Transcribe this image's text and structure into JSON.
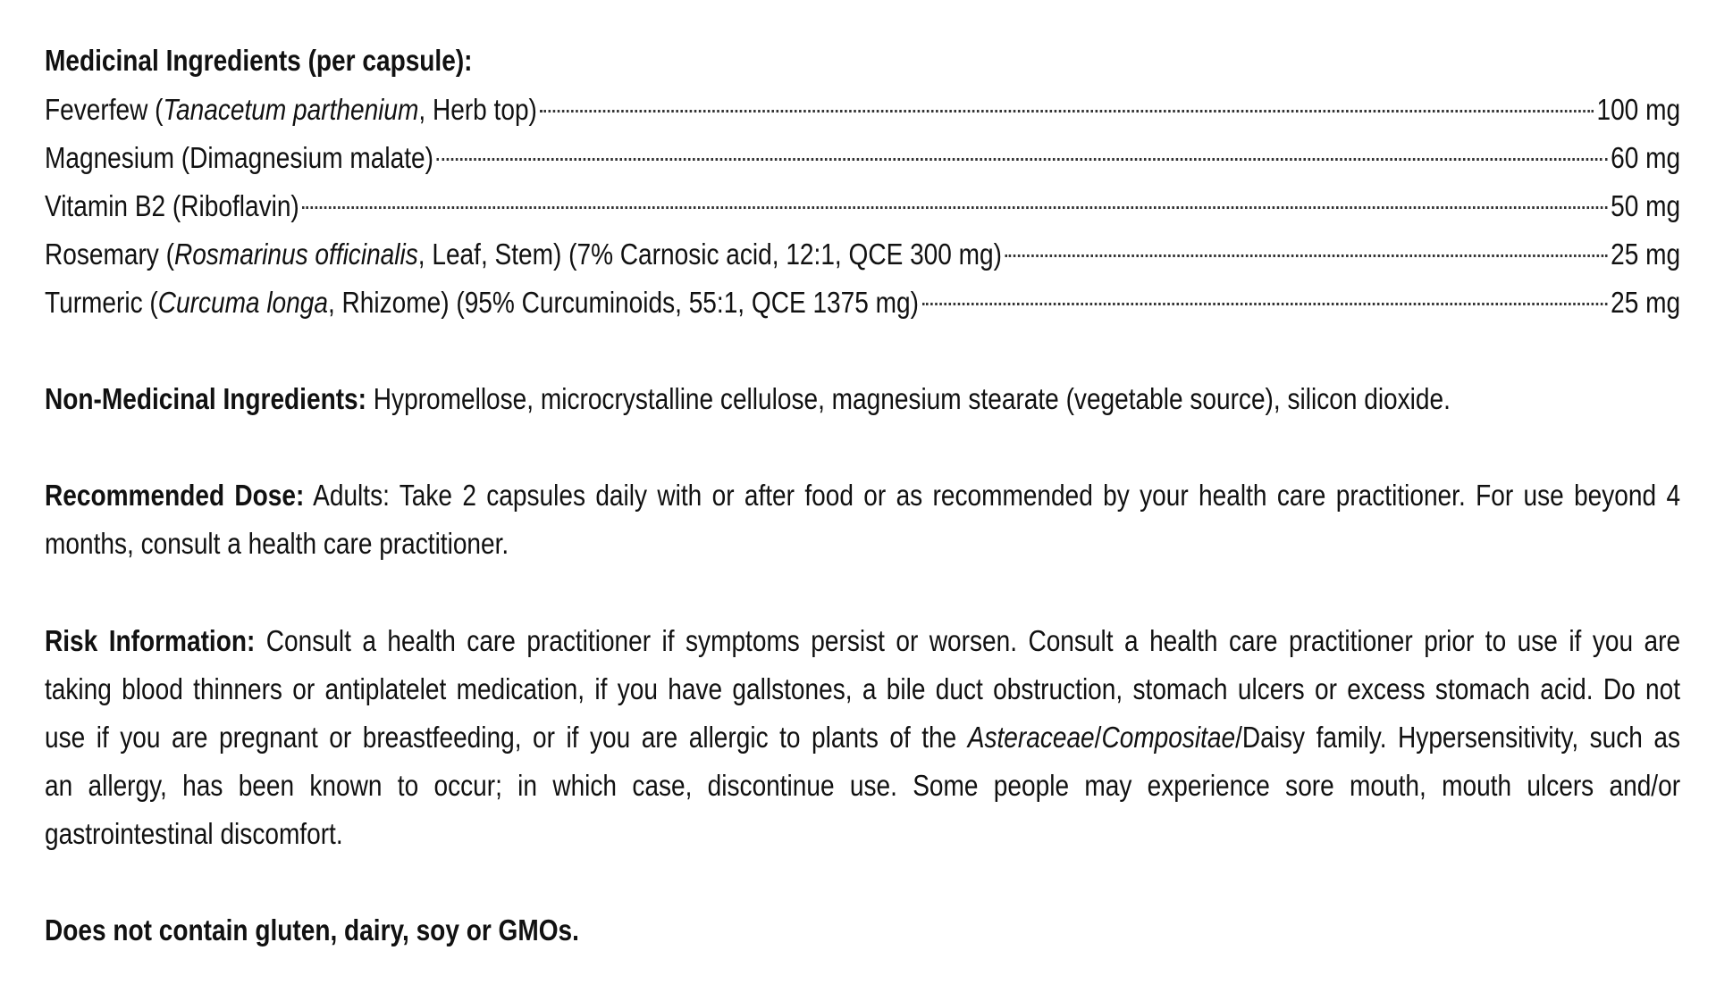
{
  "medicinal": {
    "heading": "Medicinal Ingredients (per capsule):",
    "items": [
      {
        "pre": "Feverfew (",
        "italic": "Tanacetum parthenium",
        "post": ", Herb top)",
        "amount": "100 mg"
      },
      {
        "pre": "Magnesium (Dimagnesium malate)",
        "italic": "",
        "post": "",
        "amount": "60 mg"
      },
      {
        "pre": "Vitamin B2 (Riboflavin)",
        "italic": "",
        "post": "",
        "amount": "50 mg"
      },
      {
        "pre": "Rosemary (",
        "italic": "Rosmarinus officinalis",
        "post": ", Leaf, Stem) (7% Carnosic acid, 12:1, QCE 300 mg)",
        "amount": "25 mg"
      },
      {
        "pre": "Turmeric (",
        "italic": "Curcuma longa",
        "post": ", Rhizome) (95% Curcuminoids, 55:1, QCE 1375 mg)",
        "amount": "25 mg"
      }
    ]
  },
  "non_medicinal": {
    "label": "Non-Medicinal Ingredients:",
    "text": " Hypromellose, microcrystalline cellulose, magnesium stearate (vegetable source), silicon dioxide."
  },
  "dose": {
    "label": "Recommended Dose:",
    "lines": [
      " Adults: Take 2 capsules daily with or after food or as recommended by your health care practitioner. For use beyond 4",
      "months, consult a health care practitioner."
    ]
  },
  "risk": {
    "label": "Risk Information:",
    "line1": " Consult a health care practitioner if symptoms persist or worsen. Consult a health care practitioner prior to use if you are",
    "line2": "taking blood thinners or antiplatelet medication, if you have gallstones, a bile duct obstruction, stomach ulcers or excess stomach acid. Do not",
    "line3_pre": "use if you are pregnant or breastfeeding, or if you are allergic to plants of the ",
    "line3_it1": "Asteraceae",
    "line3_sep": "/",
    "line3_it2": "Compositae",
    "line3_post": "/Daisy family. Hypersensitivity, such as",
    "line4": "an allergy, has been known to occur; in which case, discontinue use. Some people may experience sore mouth, mouth ulcers and/or",
    "line5": "gastrointestinal discomfort."
  },
  "allergen": "Does not contain gluten, dairy, soy or GMOs."
}
